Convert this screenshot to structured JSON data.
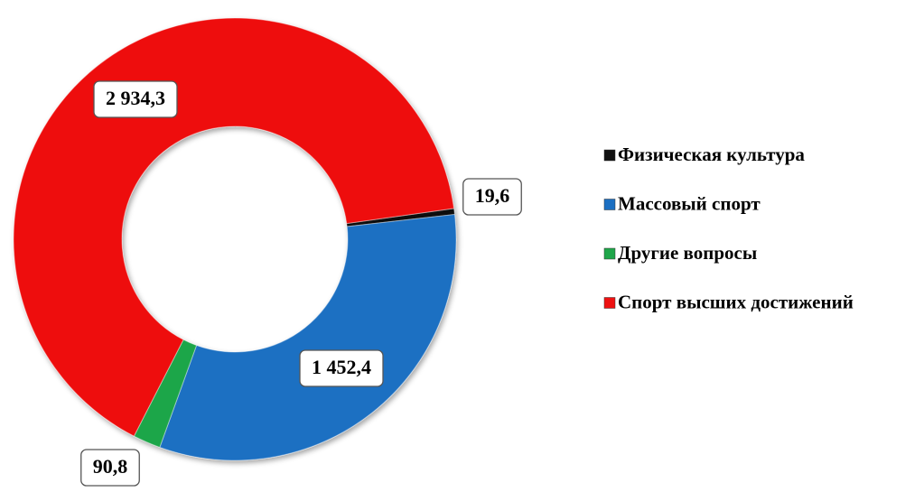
{
  "chart_data": {
    "type": "donut",
    "categories": [
      "Физическая культура",
      "Массовый спорт",
      "Другие вопросы",
      "Спорт высших достижений"
    ],
    "values": [
      19.6,
      1452.4,
      90.8,
      2934.3
    ],
    "value_labels": [
      "19,6",
      "1 452,4",
      "90,8",
      "2 934,3"
    ],
    "colors": [
      "#111111",
      "#1b6fc2",
      "#1fa64a",
      "#ee1111"
    ],
    "legend": "right"
  }
}
